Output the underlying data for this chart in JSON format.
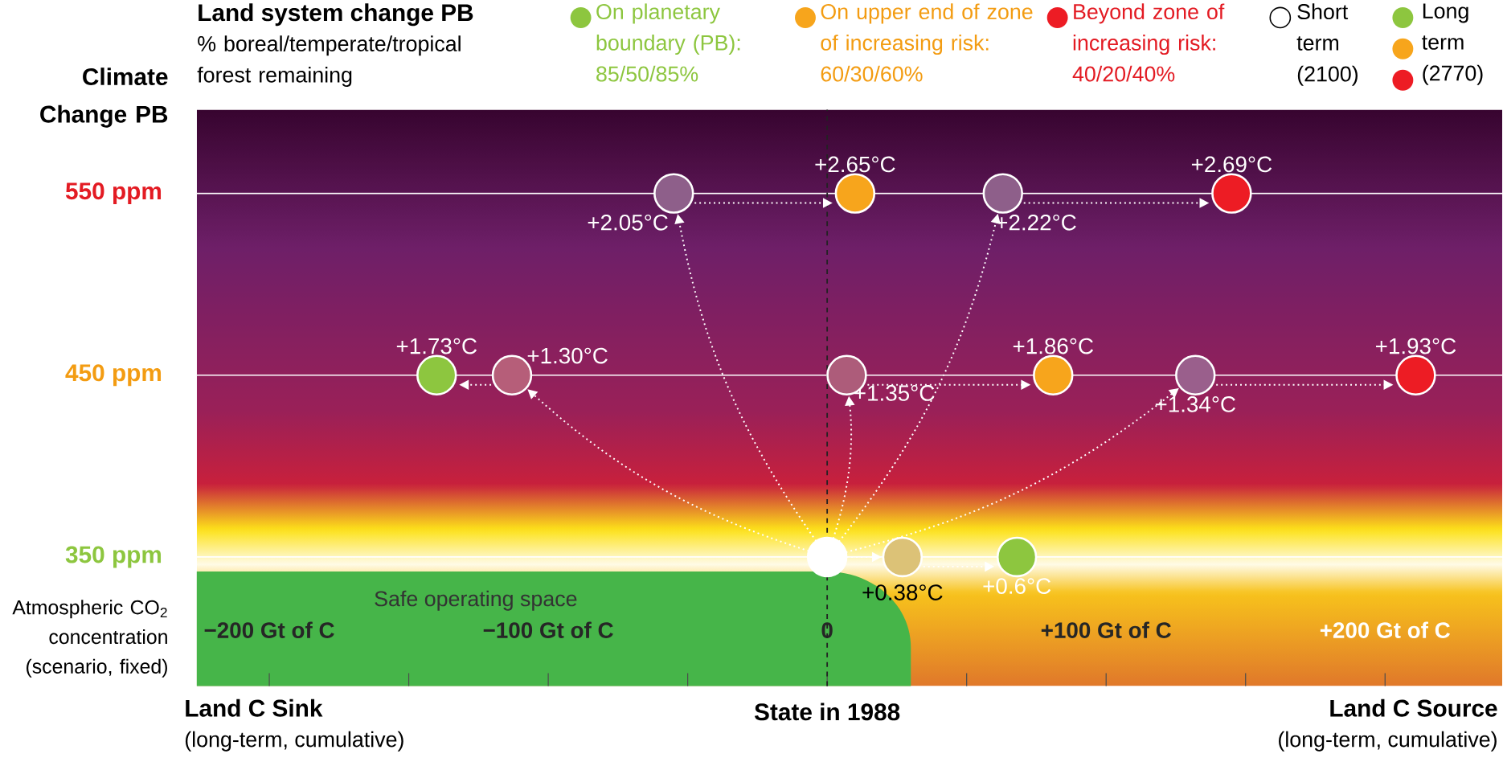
{
  "chart_data": {
    "type": "scatter",
    "title": "Land system change PB",
    "subtitle": "% boreal/temperate/tropical forest remaining",
    "ylabel": "Climate Change PB",
    "xlabel": "State in 1988",
    "xlim": [
      -226,
      242
    ],
    "ylim": [
      279,
      596
    ],
    "xticks": [
      {
        "value": -200,
        "label": "−200 Gt of C"
      },
      {
        "value": -150,
        "label": null
      },
      {
        "value": -100,
        "label": "−100 Gt of C"
      },
      {
        "value": -50,
        "label": null
      },
      0,
      {
        "value": 50,
        "label": null
      },
      {
        "value": 100,
        "label": "+100 Gt of C"
      },
      {
        "value": 150,
        "label": null
      },
      {
        "value": 200,
        "label": "+200 Gt of C"
      }
    ],
    "yticks": [
      {
        "value": 350,
        "label": "350 ppm"
      },
      {
        "value": 450,
        "label": "450 ppm"
      },
      {
        "value": 550,
        "label": "550 ppm"
      }
    ],
    "grid": "y",
    "marker": "circle",
    "legend": "top right",
    "ref_lines": [
      {
        "axis": "x",
        "value": 0,
        "color": "#222222",
        "line_style": "dashed"
      }
    ],
    "series": [
      {
        "name": "Short term (2100)",
        "color": "#ffffff",
        "x": [
          -55,
          63,
          -113,
          7,
          132,
          27
        ],
        "values": [
          550,
          550,
          450,
          450,
          450,
          350
        ],
        "colors": [
          "#8e5f8a",
          "#8e5f8a",
          "#b65e79",
          "#ad5c7a",
          "#9a5f8c",
          "#dcc277"
        ]
      },
      {
        "name": "Long term (2770)",
        "x": [
          10,
          145,
          -140,
          81,
          211,
          68
        ],
        "values": [
          550,
          550,
          450,
          450,
          450,
          350
        ],
        "colors": [
          "#f7a51c",
          "#ed1c24",
          "#8dc63f",
          "#f7a51c",
          "#ed1c24",
          "#8dc63f"
        ]
      },
      {
        "color": "#ffffff",
        "x": [
          0
        ],
        "values": [
          350
        ]
      }
    ],
    "annotations": [
      "On planetary boundary (PB): 85/50/85%",
      "On upper end of zone of increasing risk: 60/30/60%",
      "Beyond zone of increasing risk: 40/20/40%",
      "Atmospheric CO$_{2}$ concentration (scenario, fixed)",
      "Safe operating space",
      "Land C Sink",
      "(long-term, cumulative)",
      "Land C Source",
      "(long-term, cumulative)",
      {
        "text": "+2.05°C",
        "x": -55,
        "y": 550
      },
      {
        "text": "+2.22°C",
        "x": 63,
        "y": 550
      },
      {
        "text": "+1.30°C",
        "x": -113,
        "y": 450
      },
      {
        "text": "+1.35°C",
        "x": 7,
        "y": 450
      },
      {
        "text": "+1.34°C",
        "x": 132,
        "y": 450
      },
      {
        "text": "+0.38°C",
        "x": 27,
        "y": 350
      },
      {
        "text": "+2.65°C",
        "x": 10,
        "y": 550
      },
      {
        "text": "+2.69°C",
        "x": 145,
        "y": 550
      },
      {
        "text": "+1.73°C",
        "x": -140,
        "y": 450
      },
      {
        "text": "+1.86°C",
        "x": 81,
        "y": 450
      },
      {
        "text": "+1.93°C",
        "x": 211,
        "y": 450
      },
      {
        "text": "+0.6°C",
        "x": 68,
        "y": 350
      }
    ]
  }
}
